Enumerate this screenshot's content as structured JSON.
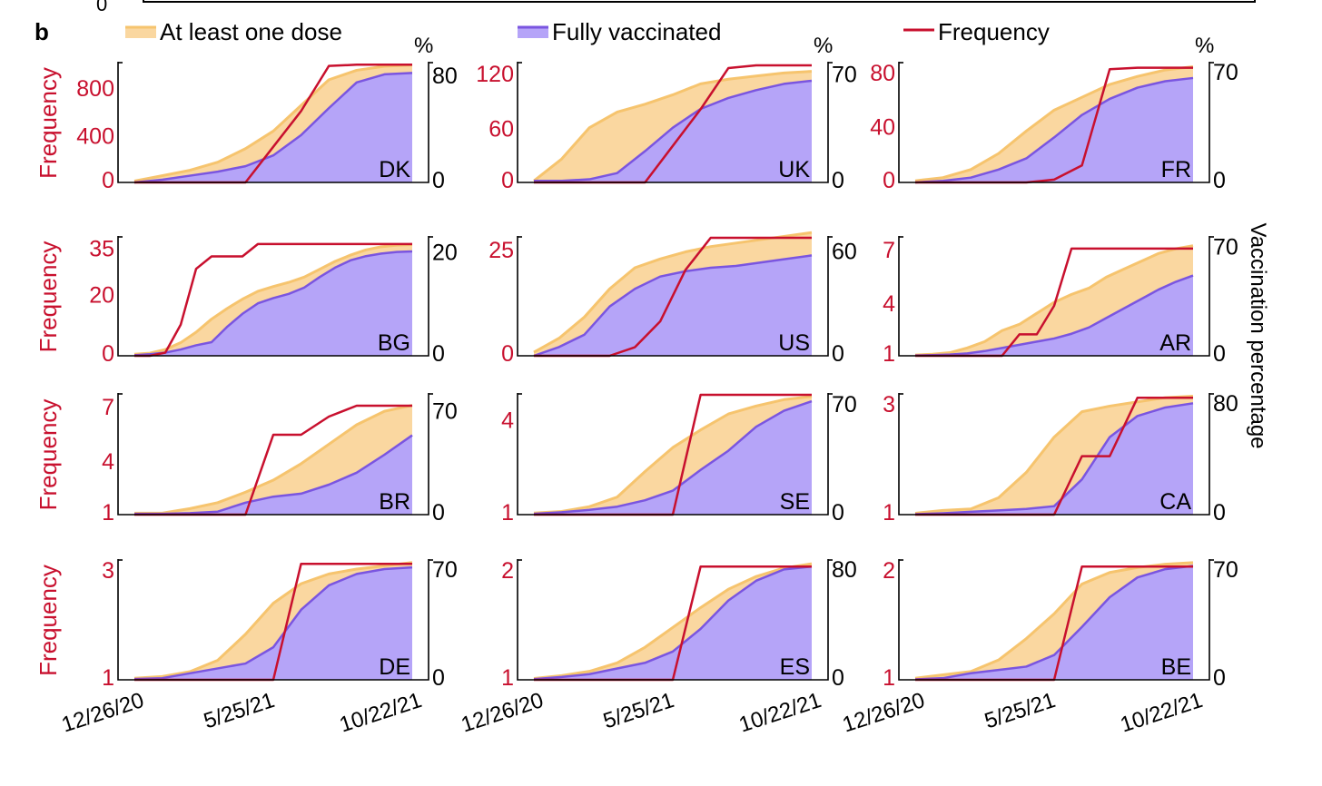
{
  "panel_label": "b",
  "top_strip_label": "0",
  "legend": [
    {
      "label": "At least one dose",
      "kind": "area",
      "color": "#f6c46e",
      "fill": "#fad7a0"
    },
    {
      "label": "Fully vaccinated",
      "kind": "area",
      "color": "#7a55e0",
      "fill": "#b5a4f8"
    },
    {
      "label": "Frequency",
      "kind": "line",
      "color": "#c8102e"
    }
  ],
  "colors": {
    "frequency": "#c8102e",
    "dose_fill": "#fad7a0",
    "dose_line": "#f6c46e",
    "full_fill": "#b5a4f8",
    "full_line": "#7a55e0",
    "axis": "#000000"
  },
  "axis_labels": {
    "left": "Frequency",
    "right": "Vaccination percentage",
    "percent_unit": "%"
  },
  "x_ticks": [
    "12/26/20",
    "5/25/21",
    "10/22/21"
  ],
  "chart_data": [
    {
      "type": "line",
      "country": "DK",
      "x": [
        0,
        1,
        2,
        3,
        4,
        5,
        6,
        7,
        8,
        9,
        10
      ],
      "freq_ticks": [
        "0",
        "400",
        "800"
      ],
      "freq_ylim": [
        0,
        1000
      ],
      "pct_ticks": [
        "0",
        "80"
      ],
      "pct_ylim": [
        0,
        88
      ],
      "pct_unit_shown": true,
      "frequency": [
        0,
        0,
        0,
        0,
        0,
        300,
        600,
        980,
        990,
        990,
        990
      ],
      "at_least_one_dose": [
        1,
        5,
        9,
        15,
        25,
        38,
        57,
        76,
        83,
        86,
        87
      ],
      "fully_vaccinated": [
        0,
        2,
        5,
        8,
        12,
        20,
        35,
        55,
        74,
        80,
        81
      ]
    },
    {
      "type": "line",
      "country": "UK",
      "x": [
        0,
        1,
        2,
        3,
        4,
        5,
        6,
        7,
        8,
        9,
        10
      ],
      "freq_ticks": [
        "0",
        "60",
        "120"
      ],
      "freq_ylim": [
        0,
        130
      ],
      "pct_ticks": [
        "0",
        "70"
      ],
      "pct_ylim": [
        0,
        76
      ],
      "pct_unit_shown": true,
      "frequency": [
        0,
        0,
        0,
        0,
        0,
        40,
        80,
        125,
        128,
        128,
        128
      ],
      "at_least_one_dose": [
        1,
        15,
        35,
        45,
        50,
        56,
        63,
        66,
        68,
        70,
        71
      ],
      "fully_vaccinated": [
        1,
        1,
        2,
        6,
        20,
        35,
        47,
        54,
        59,
        63,
        65
      ]
    },
    {
      "type": "line",
      "country": "FR",
      "x": [
        0,
        1,
        2,
        3,
        4,
        5,
        6,
        7,
        8,
        9,
        10
      ],
      "freq_ticks": [
        "0",
        "40",
        "80"
      ],
      "freq_ylim": [
        0,
        84
      ],
      "pct_ticks": [
        "0",
        "70"
      ],
      "pct_ylim": [
        0,
        74
      ],
      "pct_unit_shown": true,
      "frequency": [
        0,
        0,
        0,
        0,
        0,
        2,
        12,
        80,
        81,
        81,
        81
      ],
      "at_least_one_dose": [
        1,
        3,
        8,
        18,
        32,
        45,
        53,
        61,
        66,
        70,
        72
      ],
      "fully_vaccinated": [
        0,
        1,
        3,
        8,
        15,
        28,
        42,
        52,
        59,
        63,
        65
      ]
    },
    {
      "type": "line",
      "country": "BG",
      "x": [
        0,
        1,
        2,
        3,
        4,
        5,
        6,
        7,
        8,
        9,
        10,
        11,
        12,
        13,
        14,
        15,
        16,
        17,
        18
      ],
      "freq_ticks": [
        "0",
        "20",
        "35"
      ],
      "freq_ylim": [
        0,
        38
      ],
      "pct_ticks": [
        "0",
        "20"
      ],
      "pct_ylim": [
        0,
        22.5
      ],
      "pct_unit_shown": false,
      "frequency": [
        0,
        0,
        1,
        10,
        28,
        32,
        32,
        32,
        36,
        36,
        36,
        36,
        36,
        36,
        36,
        36,
        36,
        36,
        36
      ],
      "at_least_one_dose": [
        0.3,
        0.5,
        1.2,
        2.5,
        4.5,
        7,
        9,
        10.8,
        12.3,
        13.2,
        14,
        15,
        16.5,
        18,
        19.2,
        20.2,
        20.8,
        21.1,
        21.2
      ],
      "fully_vaccinated": [
        0.1,
        0.3,
        0.6,
        1.2,
        2,
        2.6,
        5.5,
        8,
        10,
        11,
        11.8,
        13,
        15,
        16.8,
        18.2,
        19,
        19.5,
        19.8,
        19.9
      ]
    },
    {
      "type": "line",
      "country": "US",
      "x": [
        0,
        1,
        2,
        3,
        4,
        5,
        6,
        7,
        8,
        9,
        10,
        11
      ],
      "freq_ticks": [
        "0",
        "25"
      ],
      "freq_ylim": [
        0,
        27.5
      ],
      "pct_ticks": [
        "0",
        "60"
      ],
      "pct_ylim": [
        0,
        67
      ],
      "pct_unit_shown": false,
      "frequency": [
        0,
        0,
        0,
        0,
        2,
        8,
        20,
        27.5,
        27.5,
        27.5,
        27.5,
        27.5
      ],
      "at_least_one_dose": [
        2,
        10,
        22,
        38,
        50,
        55,
        59,
        62,
        64,
        66,
        68,
        70
      ],
      "fully_vaccinated": [
        0,
        5,
        12,
        28,
        38,
        45,
        48,
        50,
        51,
        53,
        55,
        57
      ]
    },
    {
      "type": "line",
      "country": "AR",
      "x": [
        0,
        1,
        2,
        3,
        4,
        5,
        6,
        7,
        8,
        9,
        10,
        11,
        12,
        13,
        14,
        15,
        16
      ],
      "freq_ticks": [
        "1",
        "4",
        "7"
      ],
      "freq_ylim": [
        1,
        7.6
      ],
      "pct_ticks": [
        "0",
        "70"
      ],
      "pct_ylim": [
        0,
        75
      ],
      "pct_unit_shown": false,
      "frequency": [
        1,
        1,
        1,
        1,
        1,
        1,
        2.2,
        2.2,
        3.8,
        7,
        7,
        7,
        7,
        7,
        7,
        7,
        7
      ],
      "at_least_one_dose": [
        0.5,
        1,
        2,
        5,
        9,
        16,
        20,
        27,
        34,
        39,
        43,
        50,
        55,
        60,
        65,
        68,
        70
      ],
      "fully_vaccinated": [
        0.2,
        0.4,
        0.8,
        1.5,
        3,
        5,
        7,
        9,
        11,
        14,
        18,
        24,
        30,
        36,
        42,
        47,
        51
      ]
    },
    {
      "type": "line",
      "country": "BR",
      "x": [
        0,
        1,
        2,
        3,
        4,
        5,
        6,
        7,
        8,
        9,
        10
      ],
      "freq_ticks": [
        "1",
        "4",
        "7"
      ],
      "freq_ylim": [
        1,
        7.6
      ],
      "pct_ticks": [
        "0",
        "70"
      ],
      "pct_ylim": [
        0,
        80
      ],
      "pct_unit_shown": false,
      "frequency": [
        1,
        1,
        1,
        1,
        1,
        5.4,
        5.4,
        6.4,
        7,
        7,
        7
      ],
      "at_least_one_dose": [
        1,
        1,
        4,
        8,
        15,
        23,
        34,
        47,
        60,
        69,
        73
      ],
      "fully_vaccinated": [
        0.5,
        0.5,
        1,
        2,
        8,
        12,
        14,
        20,
        28,
        40,
        53
      ]
    },
    {
      "type": "line",
      "country": "SE",
      "x": [
        0,
        1,
        2,
        3,
        4,
        5,
        6,
        7,
        8,
        9,
        10
      ],
      "freq_ticks": [
        "1",
        "4"
      ],
      "freq_ylim": [
        1,
        4.75
      ],
      "pct_ticks": [
        "0",
        "70"
      ],
      "pct_ylim": [
        0,
        75
      ],
      "pct_unit_shown": false,
      "frequency": [
        1,
        1,
        1,
        1,
        1,
        1,
        4.75,
        4.75,
        4.75,
        4.75,
        4.75
      ],
      "at_least_one_dose": [
        1,
        2,
        5,
        11,
        27,
        42,
        53,
        63,
        68,
        72,
        74
      ],
      "fully_vaccinated": [
        0.5,
        1.5,
        3,
        5,
        9,
        15,
        28,
        40,
        55,
        65,
        71
      ]
    },
    {
      "type": "line",
      "country": "CA",
      "x": [
        0,
        1,
        2,
        3,
        4,
        5,
        6,
        7,
        8,
        9,
        10
      ],
      "freq_ticks": [
        "1",
        "3"
      ],
      "freq_ylim": [
        1,
        3.05
      ],
      "pct_ticks": [
        "0",
        "80"
      ],
      "pct_ylim": [
        0,
        85
      ],
      "pct_unit_shown": false,
      "frequency": [
        1,
        1,
        1,
        1,
        1,
        1,
        2,
        2,
        3,
        3,
        3
      ],
      "at_least_one_dose": [
        1,
        3,
        4,
        12,
        30,
        55,
        73,
        77,
        80,
        83,
        84
      ],
      "fully_vaccinated": [
        0.3,
        1,
        2,
        3,
        4,
        6,
        25,
        55,
        70,
        76,
        79
      ]
    },
    {
      "type": "line",
      "country": "DE",
      "x": [
        0,
        1,
        2,
        3,
        4,
        5,
        6,
        7,
        8,
        9,
        10
      ],
      "freq_ticks": [
        "1",
        "3"
      ],
      "freq_ylim": [
        1,
        3.05
      ],
      "pct_ticks": [
        "0",
        "70"
      ],
      "pct_ylim": [
        0,
        73
      ],
      "pct_unit_shown": false,
      "frequency": [
        1,
        1,
        1,
        1,
        1,
        1,
        3,
        3,
        3,
        3,
        3
      ],
      "at_least_one_dose": [
        1,
        2,
        5,
        12,
        28,
        47,
        59,
        65,
        68,
        70,
        72
      ],
      "fully_vaccinated": [
        0.5,
        1,
        4,
        7,
        10,
        20,
        43,
        58,
        65,
        68,
        69
      ]
    },
    {
      "type": "line",
      "country": "ES",
      "x": [
        0,
        1,
        2,
        3,
        4,
        5,
        6,
        7,
        8,
        9,
        10
      ],
      "freq_ticks": [
        "1",
        "2"
      ],
      "freq_ylim": [
        1,
        2.05
      ],
      "pct_ticks": [
        "0",
        "80"
      ],
      "pct_ylim": [
        0,
        84
      ],
      "pct_unit_shown": false,
      "frequency": [
        1,
        1,
        1,
        1,
        1,
        1,
        2,
        2,
        2,
        2,
        2
      ],
      "at_least_one_dose": [
        1,
        3,
        6,
        12,
        23,
        37,
        51,
        64,
        73,
        79,
        82
      ],
      "fully_vaccinated": [
        0.5,
        2,
        4,
        8,
        12,
        20,
        36,
        56,
        70,
        78,
        80
      ]
    },
    {
      "type": "line",
      "country": "BE",
      "x": [
        0,
        1,
        2,
        3,
        4,
        5,
        6,
        7,
        8,
        9,
        10
      ],
      "freq_ticks": [
        "1",
        "2"
      ],
      "freq_ylim": [
        1,
        2.05
      ],
      "pct_ticks": [
        "0",
        "70"
      ],
      "pct_ylim": [
        0,
        72
      ],
      "pct_unit_shown": false,
      "frequency": [
        1,
        1,
        1,
        1,
        1,
        1,
        2,
        2,
        2,
        2,
        2
      ],
      "at_least_one_dose": [
        1,
        3,
        5,
        12,
        25,
        40,
        58,
        65,
        68,
        70,
        71
      ],
      "fully_vaccinated": [
        0.3,
        1,
        4,
        6,
        8,
        15,
        32,
        50,
        62,
        67,
        69
      ]
    }
  ]
}
